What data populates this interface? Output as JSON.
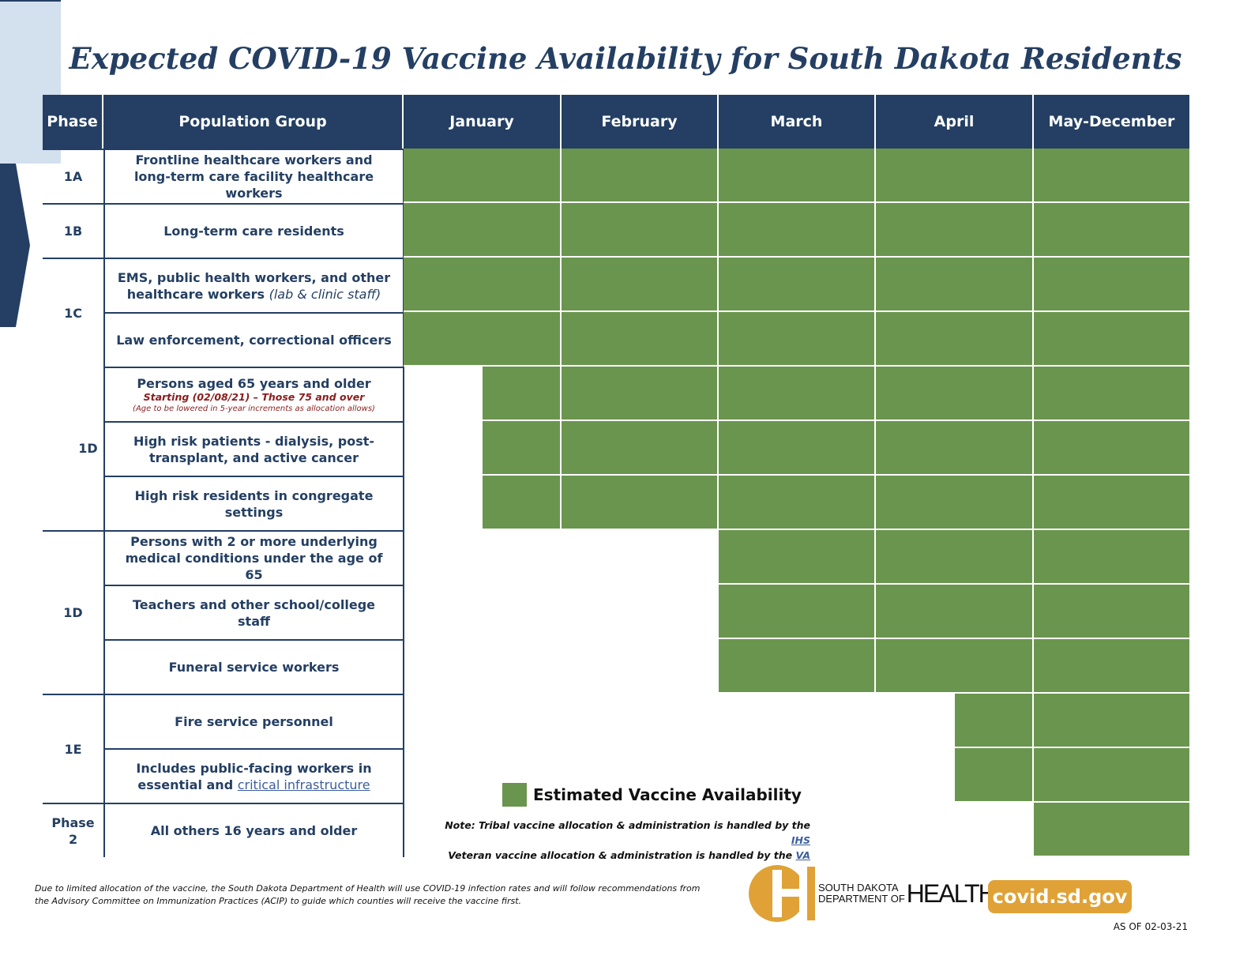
{
  "title": "Expected COVID-19 Vaccine Availability for South Dakota Residents",
  "headers": [
    "Phase",
    "Population Group",
    "January",
    "February",
    "March",
    "April",
    "May-December"
  ],
  "colors": {
    "navy": "#243f63",
    "green": "#6a954e",
    "light_blue": "#d3e0ee",
    "gold": "#e0a236",
    "red": "#8b1c1c"
  },
  "phases": [
    {
      "label": "1A",
      "rows": 1
    },
    {
      "label": "1B",
      "rows": 1
    },
    {
      "label": "1C",
      "rows": 2
    },
    {
      "label": "1D",
      "rows": 3,
      "marker": "we are here"
    },
    {
      "label": "1D",
      "rows": 3
    },
    {
      "label": "1E",
      "rows": 2
    },
    {
      "label": "Phase 2",
      "rows": 1
    }
  ],
  "rows": [
    {
      "group": "Frontline healthcare workers and long-term care facility healthcare workers",
      "start_month_index": 0
    },
    {
      "group": "Long-term care residents",
      "start_month_index": 0
    },
    {
      "group": "EMS, public health workers, and other healthcare workers",
      "italic": "(lab & clinic staff)",
      "start_month_index": 0
    },
    {
      "group": "Law enforcement, correctional officers",
      "start_month_index": 0
    },
    {
      "group": "Persons aged 65 years and older",
      "sub": "Starting (02/08/21) – Those 75 and over",
      "sub2": "(Age to be lowered in 5-year increments as allocation allows)",
      "start_month_index": 0.5
    },
    {
      "group": "High risk patients - dialysis, post-transplant, and active cancer",
      "start_month_index": 0.5
    },
    {
      "group": "High risk residents in congregate settings",
      "start_month_index": 0.5
    },
    {
      "group": "Persons with 2 or more underlying medical conditions under the age of 65",
      "start_month_index": 2
    },
    {
      "group": "Teachers and other school/college staff",
      "start_month_index": 2
    },
    {
      "group": "Funeral service workers",
      "start_month_index": 2
    },
    {
      "group": "Fire service personnel",
      "start_month_index": 3.5
    },
    {
      "group": "Includes public-facing workers in essential and",
      "link": "critical infrastructure",
      "start_month_index": 3.5
    },
    {
      "group": "All others 16 years and older",
      "start_month_index": 4
    }
  ],
  "legend": "Estimated Vaccine Availability",
  "note": {
    "line1": "Note: Tribal vaccine allocation & administration is handled by the",
    "link1": "IHS",
    "line2": "Veteran vaccine allocation & administration is handled by the",
    "link2": "VA"
  },
  "footer": "Due to limited allocation of the vaccine, the South Dakota Department of Health will use COVID-19 infection rates and will follow recommendations from the Advisory Committee on Immunization Practices (ACIP) to guide which counties will receive the vaccine first.",
  "logo": {
    "line1": "SOUTH DAKOTA",
    "line2": "DEPARTMENT OF",
    "word": "HEALTH"
  },
  "website": "covid.sd.gov",
  "as_of": "AS OF 02-03-21"
}
